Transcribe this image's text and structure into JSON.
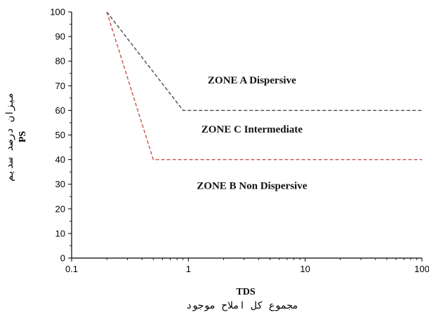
{
  "chart_data": {
    "type": "line",
    "xlabel": "TDS",
    "xlabel_sub": "مجموع کل املاح موجود",
    "ylabel": "میزان درصد سدیم",
    "ylabel_sub": "PS",
    "x_scale": "log",
    "xlim": [
      0.1,
      100
    ],
    "ylim": [
      0,
      100
    ],
    "x_ticks": [
      "0.1",
      "1",
      "10",
      "100"
    ],
    "x_tick_values": [
      0.1,
      1,
      10,
      100
    ],
    "y_ticks": [
      "0",
      "10",
      "20",
      "30",
      "40",
      "50",
      "60",
      "70",
      "80",
      "90",
      "100"
    ],
    "y_tick_values": [
      0,
      10,
      20,
      30,
      40,
      50,
      60,
      70,
      80,
      90,
      100
    ],
    "grid": false,
    "series": [
      {
        "color": "#4a4a4a",
        "style": "dashed",
        "x": [
          0.2,
          0.9,
          100
        ],
        "y": [
          100,
          60,
          60
        ]
      },
      {
        "color": "#c8504a",
        "style": "dashed",
        "x": [
          0.2,
          0.5,
          100
        ],
        "y": [
          100,
          40,
          40
        ]
      }
    ],
    "annotations": [
      {
        "text": "ZONE A  Dispersive",
        "x": 3.5,
        "y": 71
      },
      {
        "text": "ZONE C  Intermediate",
        "x": 3.5,
        "y": 51
      },
      {
        "text": "ZONE B  Non Dispersive",
        "x": 3.5,
        "y": 28
      }
    ]
  }
}
